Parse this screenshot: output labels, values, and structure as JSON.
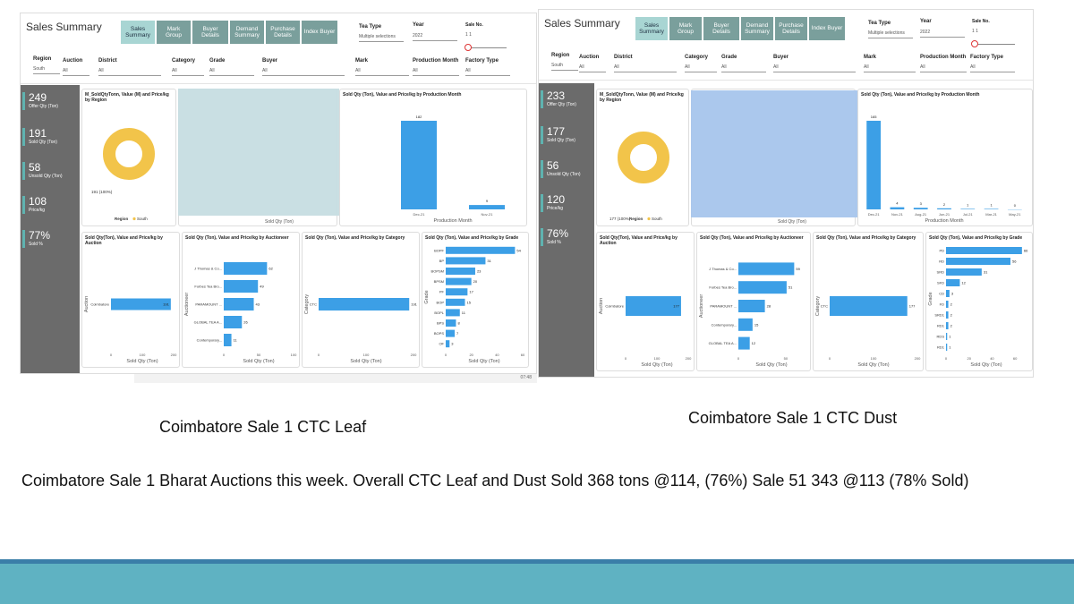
{
  "dash_leaf": {
    "title": "Sales Summary",
    "tabs": [
      "Sales Summary",
      "Mark Group",
      "Buyer Details",
      "Demand Summary",
      "Purchase Details",
      "Index Buyer"
    ],
    "filters_top": [
      {
        "label": "Tea Type",
        "value": "Multiple selections"
      },
      {
        "label": "Year",
        "value": "2022"
      },
      {
        "label": "Sale No.",
        "value": "1       1"
      }
    ],
    "filters": [
      {
        "label": "Region",
        "value": "South"
      },
      {
        "label": "Auction",
        "value": "All"
      },
      {
        "label": "District",
        "value": "All"
      },
      {
        "label": "Category",
        "value": "All"
      },
      {
        "label": "Grade",
        "value": "All"
      },
      {
        "label": "Buyer",
        "value": "All"
      },
      {
        "label": "Mark",
        "value": "All"
      },
      {
        "label": "Production Month",
        "value": "All"
      },
      {
        "label": "Factory Type",
        "value": "All"
      }
    ],
    "kpis": [
      {
        "value": "249",
        "label": "Offer Qty (Ton)"
      },
      {
        "value": "191",
        "label": "Sold Qty (Ton)"
      },
      {
        "value": "58",
        "label": "Unsold Qty (Ton)"
      },
      {
        "value": "108",
        "label": "Price/kg"
      },
      {
        "value": "77%",
        "label": "Sold %"
      }
    ],
    "donut": {
      "title": "M_SoldQtyTonn, Value (M) and Price/kg by Region",
      "label": "191 (100%)",
      "legend_title": "Region",
      "legend_item": "South"
    },
    "month_chart": {
      "title": "Sold Qty (Ton), Value and Price/kg by Production Month",
      "xlabel": "Production Month",
      "categories": [
        "Dec-21",
        "Nov-21"
      ],
      "values": [
        182,
        9
      ]
    },
    "auction_chart": {
      "title": "Sold Qty(Ton), Value and Price/kg by Auction",
      "ylabel": "Auction",
      "xlabel": "Sold Qty (Ton)",
      "categories": [
        "Coimbatore"
      ],
      "values": [
        191
      ],
      "ticks": [
        "0",
        "100",
        "200"
      ],
      "xmax": 200
    },
    "auctioneer_chart": {
      "title": "Sold Qty (Ton), Value and Price/kg by Auctioneer",
      "ylabel": "Auctioneer",
      "xlabel": "Sold Qty (Ton)",
      "categories": [
        "J Thomas & Co...",
        "Forbes Tea Bro...",
        "PARAMOUNT ...",
        "GLOBAL TEA A...",
        "Contemporary..."
      ],
      "values": [
        62,
        49,
        43,
        26,
        11
      ],
      "ticks": [
        "0",
        "50",
        "100"
      ],
      "xmax": 100
    },
    "category_chart": {
      "title": "Sold Qty (Ton), Value and Price/kg by Category",
      "ylabel": "Category",
      "xlabel": "Sold Qty (Ton)",
      "categories": [
        "CTC"
      ],
      "values": [
        191
      ],
      "ticks": [
        "0",
        "100",
        "200"
      ],
      "xmax": 200
    },
    "grade_chart": {
      "title": "Sold Qty (Ton), Value and Price/kg by Grade",
      "ylabel": "Grade",
      "xlabel": "Sold Qty (Ton)",
      "categories": [
        "BOPF",
        "BP",
        "BOPSM",
        "BPSM",
        "PF",
        "BOP",
        "BOPL",
        "BPS",
        "BOPS",
        "OF"
      ],
      "values": [
        54,
        31,
        23,
        20,
        17,
        15,
        11,
        8,
        7,
        3
      ],
      "ticks": [
        "0",
        "20",
        "40",
        "60"
      ],
      "xmax": 60
    },
    "hidden_axis_label": "Sold Qty (Ton)",
    "taskbar_time": "07:48"
  },
  "dash_dust": {
    "title": "Sales Summary",
    "tabs": [
      "Sales Summary",
      "Mark Group",
      "Buyer Details",
      "Demand Summary",
      "Purchase Details",
      "Index Buyer"
    ],
    "filters_top": [
      {
        "label": "Tea Type",
        "value": "Multiple selections"
      },
      {
        "label": "Year",
        "value": "2022"
      },
      {
        "label": "Sale No.",
        "value": "1       1"
      }
    ],
    "filters": [
      {
        "label": "Region",
        "value": "South"
      },
      {
        "label": "Auction",
        "value": "All"
      },
      {
        "label": "District",
        "value": "All"
      },
      {
        "label": "Category",
        "value": "All"
      },
      {
        "label": "Grade",
        "value": "All"
      },
      {
        "label": "Buyer",
        "value": "All"
      },
      {
        "label": "Mark",
        "value": "All"
      },
      {
        "label": "Production Month",
        "value": "All"
      },
      {
        "label": "Factory Type",
        "value": "All"
      }
    ],
    "kpis": [
      {
        "value": "233",
        "label": "Offer Qty (Ton)"
      },
      {
        "value": "177",
        "label": "Sold Qty (Ton)"
      },
      {
        "value": "56",
        "label": "Unsold Qty (Ton)"
      },
      {
        "value": "120",
        "label": "Price/kg"
      },
      {
        "value": "76%",
        "label": "Sold %"
      }
    ],
    "donut": {
      "title": "M_SoldQtyTonn, Value (M) and Price/kg by Region",
      "label": "177 (100%)",
      "legend_title": "Region",
      "legend_item": "South"
    },
    "month_chart": {
      "title": "Sold Qty (Ton), Value and Price/kg by Production Month",
      "xlabel": "Production Month",
      "categories": [
        "Dec-21",
        "Nov-21",
        "Aug-21",
        "Jun-21",
        "Jul-21",
        "Mar-21",
        "May-21"
      ],
      "values": [
        165,
        4,
        3,
        2,
        1,
        1,
        0
      ]
    },
    "auction_chart": {
      "title": "Sold Qty(Ton), Value and Price/kg by Auction",
      "ylabel": "Auction",
      "xlabel": "Sold Qty (Ton)",
      "categories": [
        "Coimbatore"
      ],
      "values": [
        177
      ],
      "ticks": [
        "0",
        "100",
        "200"
      ],
      "xmax": 200
    },
    "auctioneer_chart": {
      "title": "Sold Qty (Ton), Value and Price/kg by Auctioneer",
      "ylabel": "Auctioneer",
      "xlabel": "Sold Qty (Ton)",
      "categories": [
        "J Thomas & Co...",
        "Forbes Tea Bro...",
        "PARAMOUNT ...",
        "Contemporary...",
        "GLOBAL TEA A..."
      ],
      "values": [
        59,
        51,
        28,
        15,
        12
      ],
      "ticks": [
        "0",
        "50"
      ],
      "xmax": 70
    },
    "category_chart": {
      "title": "Sold Qty (Ton), Value and Price/kg by Category",
      "ylabel": "Category",
      "xlabel": "Sold Qty (Ton)",
      "categories": [
        "CTC"
      ],
      "values": [
        177
      ],
      "ticks": [
        "0",
        "100",
        "200"
      ],
      "xmax": 200
    },
    "grade_chart": {
      "title": "Sold Qty (Ton), Value and Price/kg by Grade",
      "ylabel": "Grade",
      "xlabel": "Sold Qty (Ton)",
      "categories": [
        "PD",
        "RD",
        "SRD",
        "SFD",
        "CD",
        "FD",
        "SRD1",
        "RD1",
        "RDS",
        "RD1"
      ],
      "values": [
        66,
        56,
        31,
        12,
        3,
        2,
        2,
        2,
        1,
        1
      ],
      "ticks": [
        "0",
        "20",
        "40",
        "60"
      ],
      "xmax": 70
    },
    "hidden_axis_label": "Sold Qty (Ton)"
  },
  "captions": {
    "leaf": "Coimbatore Sale 1 CTC Leaf",
    "dust": "Coimbatore Sale 1 CTC Dust",
    "note": "Coimbatore Sale 1 Bharat Auctions this week. Overall CTC Leaf and Dust  Sold 368 tons @114, (76%)  Sale 51 343 @113 (78% Sold)"
  },
  "colors": {
    "bar": "#3c9fe6",
    "donut": "#f2c44a",
    "sidebar": "#6b6b6b",
    "tab": "#7a9f9c",
    "tab_active": "#a8d5d3",
    "overlay_leaf": "#c6dde2",
    "overlay_dust": "#a7c5ec",
    "band_dark": "#3a7ea8",
    "band_light": "#5fb2c2"
  }
}
